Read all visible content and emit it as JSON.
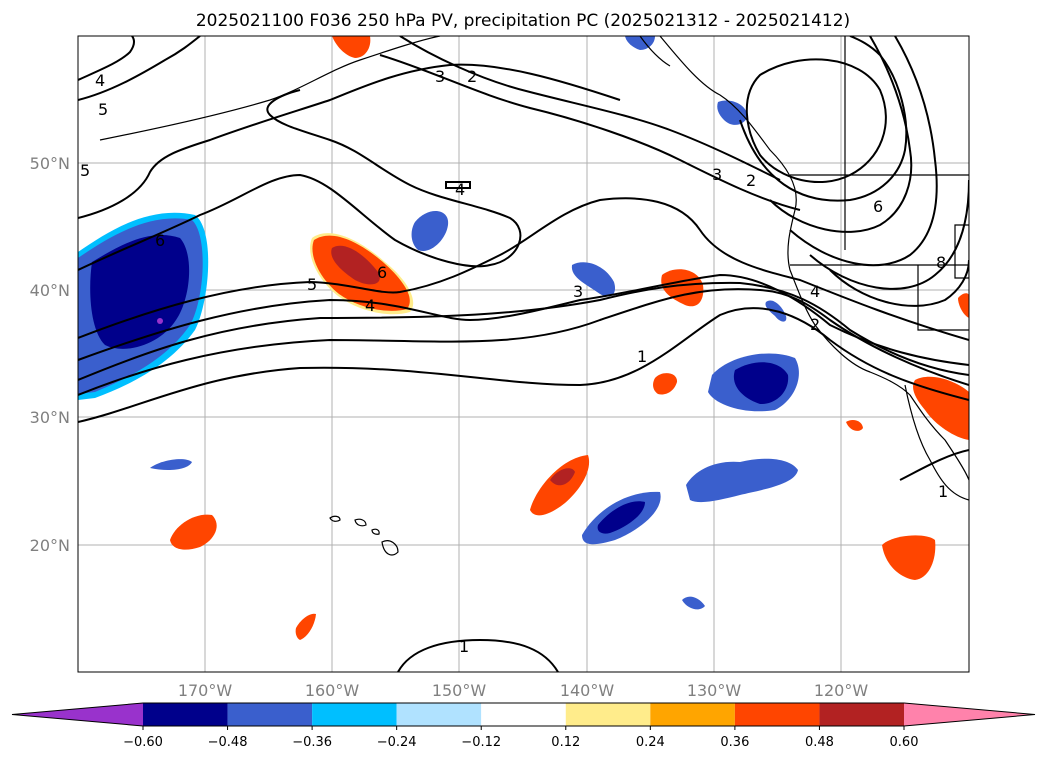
{
  "figure": {
    "title": "2025021100 F036 250 hPa PV, precipitation PC (2025021312 - 2025021412)"
  },
  "map": {
    "lat_labels": [
      "50°N",
      "40°N",
      "30°N",
      "20°N"
    ],
    "lon_labels": [
      "170°W",
      "160°W",
      "150°W",
      "140°W",
      "130°W",
      "120°W"
    ],
    "contour_labels": [
      "4",
      "5",
      "2",
      "3",
      "3",
      "2",
      "4",
      "3",
      "2",
      "6",
      "5",
      "6",
      "4",
      "3",
      "1",
      "4",
      "2",
      "8",
      "1",
      "1",
      "5",
      "6"
    ]
  },
  "colorbar": {
    "tick_labels": [
      "−0.60",
      "−0.48",
      "−0.36",
      "−0.24",
      "−0.12",
      "0.12",
      "0.24",
      "0.36",
      "0.48",
      "0.60"
    ],
    "colors": [
      "#9932CC",
      "#00008B",
      "#3A5FCD",
      "#00BFFF",
      "#B0E2FF",
      "#FFFFFF",
      "#FFEC8B",
      "#FFA500",
      "#FF4500",
      "#B22222",
      "#FF82AB"
    ]
  },
  "chart_data": {
    "type": "heatmap",
    "title": "2025021100 F036 250 hPa PV, precipitation PC (2025021312 - 2025021412)",
    "lon_range": [
      -180,
      -110
    ],
    "lat_range": [
      10,
      60
    ],
    "grid": true,
    "contour_field": "250 hPa PV",
    "contour_levels_labeled": [
      1,
      2,
      3,
      4,
      5,
      6,
      8
    ],
    "filled_field": "precipitation PC",
    "colorbar_levels": [
      -0.6,
      -0.48,
      -0.36,
      -0.24,
      -0.12,
      0.12,
      0.24,
      0.36,
      0.48,
      0.6
    ],
    "colorbar_extend": "both"
  }
}
